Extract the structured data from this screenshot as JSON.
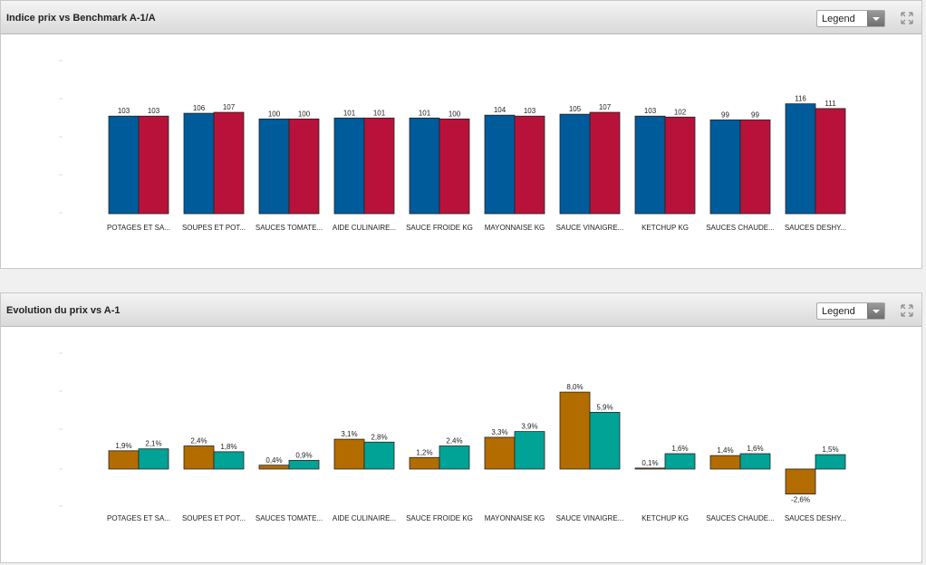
{
  "panels": [
    {
      "title": "Indice prix vs Benchmark A-1/A",
      "legend_label": "Legend",
      "icon": "expand-icon"
    },
    {
      "title": "Evolution du prix vs A-1",
      "legend_label": "Legend",
      "icon": "expand-icon"
    }
  ],
  "chart_data": [
    {
      "type": "bar",
      "categories": [
        "POTAGES ET SA...",
        "SOUPES ET POT...",
        "SAUCES TOMATE...",
        "AIDE CULINAIRE...",
        "SAUCE FROIDE KG",
        "MAYONNAISE KG",
        "SAUCE VINAIGRE...",
        "KETCHUP KG",
        "SAUCES CHAUDE...",
        "SAUCES DESHY..."
      ],
      "series": [
        {
          "values": [
            103,
            106,
            100,
            101,
            101,
            104,
            105,
            103,
            99,
            116
          ],
          "labels": [
            "103",
            "106",
            "100",
            "101",
            "101",
            "104",
            "105",
            "103",
            "99",
            "116"
          ],
          "color": "#005b9a"
        },
        {
          "values": [
            103,
            107,
            100,
            101,
            100,
            103,
            107,
            102,
            99,
            111
          ],
          "labels": [
            "103",
            "107",
            "100",
            "101",
            "100",
            "103",
            "107",
            "102",
            "99",
            "111"
          ],
          "color": "#b8123a"
        }
      ],
      "ylim": [
        0,
        130
      ],
      "grid": false
    },
    {
      "type": "bar",
      "categories": [
        "POTAGES ET SA...",
        "SOUPES ET POT...",
        "SAUCES TOMATE...",
        "AIDE CULINAIRE...",
        "SAUCE FROIDE KG",
        "MAYONNAISE KG",
        "SAUCE VINAIGRE...",
        "KETCHUP KG",
        "SAUCES CHAUDE...",
        "SAUCES DESHY..."
      ],
      "series": [
        {
          "values": [
            1.9,
            2.4,
            0.4,
            3.1,
            1.2,
            3.3,
            8.0,
            0.1,
            1.4,
            -2.6
          ],
          "labels": [
            "1,9%",
            "2,4%",
            "0,4%",
            "3,1%",
            "1,2%",
            "3,3%",
            "8,0%",
            "0,1%",
            "1,4%",
            "-2,6%"
          ],
          "color": "#b36c00"
        },
        {
          "values": [
            2.1,
            1.8,
            0.9,
            2.8,
            2.4,
            3.9,
            5.9,
            1.6,
            1.6,
            1.5
          ],
          "labels": [
            "2,1%",
            "1,8%",
            "0,9%",
            "2,8%",
            "2,4%",
            "3,9%",
            "5,9%",
            "1,6%",
            "1,6%",
            "1,5%"
          ],
          "color": "#00a396"
        }
      ],
      "ylim": [
        -3,
        10
      ],
      "grid": false
    }
  ]
}
